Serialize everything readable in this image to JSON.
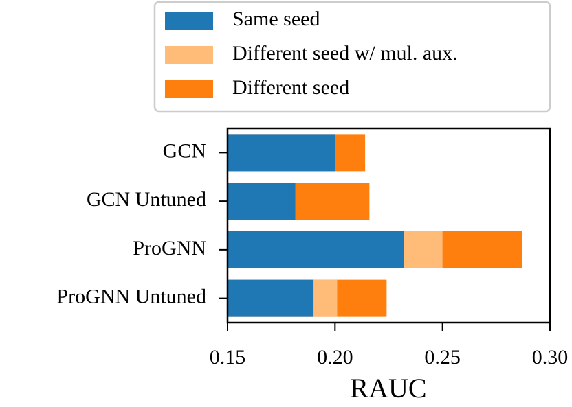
{
  "chart_data": {
    "type": "overlaid-barh",
    "categories": [
      "GCN",
      "GCN Untuned",
      "ProGNN",
      "ProGNN Untuned"
    ],
    "series": [
      {
        "name": "Same seed",
        "color": "#1f77b4",
        "values": [
          0.2,
          0.1815,
          0.232,
          0.19
        ]
      },
      {
        "name": "Different seed w/ mul. aux.",
        "color": "#ffbb78",
        "values": [
          null,
          null,
          0.25,
          0.201
        ]
      },
      {
        "name": "Different seed",
        "color": "#ff7f0e",
        "values": [
          0.214,
          0.216,
          0.287,
          0.224
        ]
      }
    ],
    "xlabel": "RAUC",
    "xlim": [
      0.15,
      0.3
    ],
    "xticks": [
      0.15,
      {
        "value": 0.2,
        "label": "0.20"
      },
      0.25,
      {
        "value": 0.3,
        "label": "0.30"
      }
    ],
    "legend": "top-right"
  }
}
